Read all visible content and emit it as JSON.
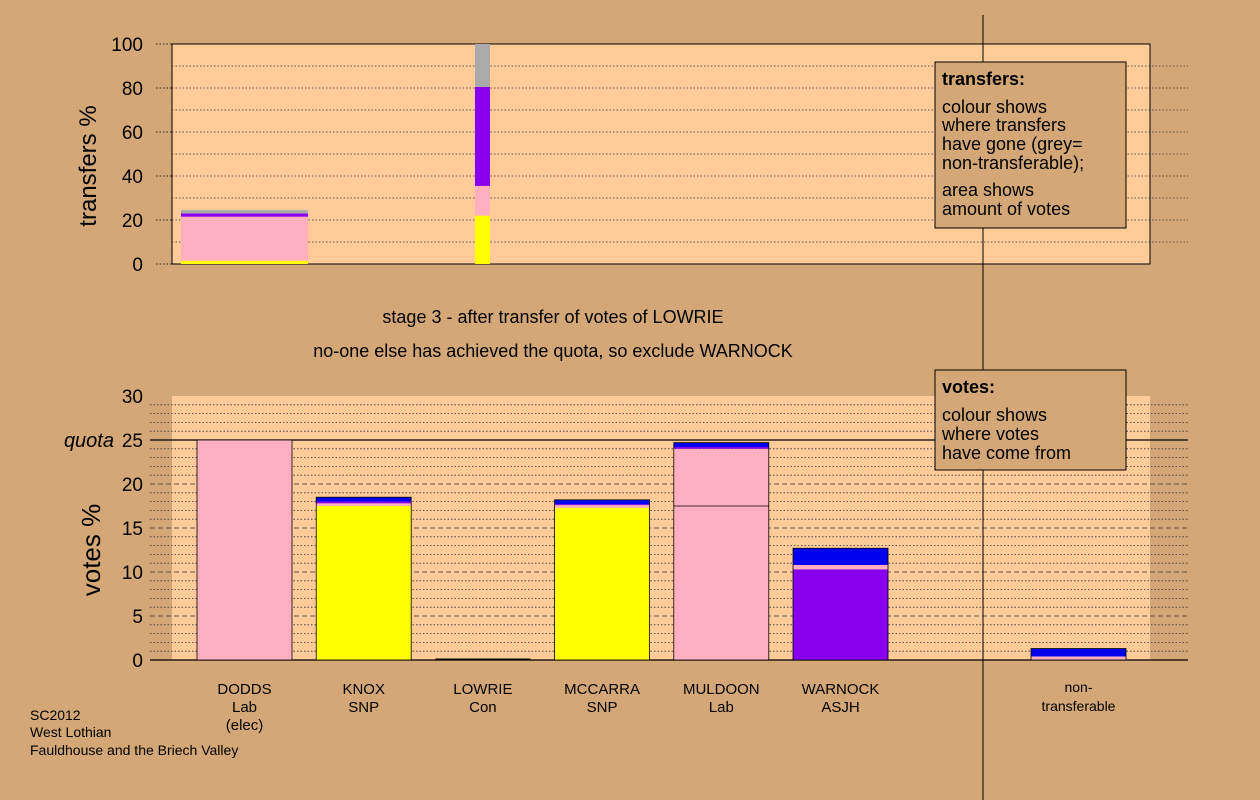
{
  "colors": {
    "background": "#d4a876",
    "plot_area": "#ffcc99",
    "Lab": "#ffb0c0",
    "SNP": "#ffff00",
    "ASJH": "#8800ee",
    "Con": "#0000ee",
    "non_transferable": "#aaaaaa"
  },
  "stage_text": {
    "line1": "stage 3 - after transfer of votes of LOWRIE",
    "line2": "no-one else has achieved the quota, so exclude WARNOCK"
  },
  "transfers_legend": {
    "title": "transfers:",
    "line1": "colour shows",
    "line2": "where transfers",
    "line3": "have gone (grey=",
    "line4": "non-transferable);",
    "line5": "area shows",
    "line6": "amount of votes"
  },
  "votes_legend": {
    "title": "votes:",
    "line1": "colour shows",
    "line2": "where votes",
    "line3": "have come from"
  },
  "footer": {
    "line1": "SC2012",
    "line2": "West Lothian",
    "line3": "Fauldhouse and the Briech Valley"
  },
  "quota_label": "quota",
  "chart_data": [
    {
      "type": "bar",
      "name": "transfers",
      "ylabel": "transfers %",
      "ylim": [
        0,
        100
      ],
      "yticks": [
        0,
        20,
        40,
        60,
        80,
        100
      ],
      "bars": [
        {
          "width_share": 24,
          "segments": [
            {
              "party": "SNP",
              "from": 0,
              "to": 1.5
            },
            {
              "party": "Lab",
              "from": 1.5,
              "to": 21.5
            },
            {
              "party": "ASJH",
              "from": 21.5,
              "to": 23
            },
            {
              "party": "non_transferable",
              "from": 23,
              "to": 24.5
            }
          ]
        },
        {
          "width_share": 1,
          "segments": [
            {
              "party": "SNP",
              "from": 0,
              "to": 22
            },
            {
              "party": "Lab",
              "from": 22,
              "to": 35.5
            },
            {
              "party": "ASJH",
              "from": 35.5,
              "to": 80.5
            },
            {
              "party": "non_transferable",
              "from": 80.5,
              "to": 100
            }
          ]
        }
      ]
    },
    {
      "type": "bar",
      "name": "votes",
      "ylabel": "votes %",
      "ylim": [
        0,
        30
      ],
      "yticks": [
        0,
        5,
        10,
        15,
        20,
        25,
        30
      ],
      "quota": 25,
      "candidates": [
        {
          "name": "DODDS",
          "party": "Lab",
          "note": "(elec)",
          "segments": [
            {
              "party": "Lab",
              "from": 0,
              "to": 25
            }
          ],
          "dividers": []
        },
        {
          "name": "KNOX",
          "party": "SNP",
          "note": "",
          "segments": [
            {
              "party": "SNP",
              "from": 0,
              "to": 17.5
            },
            {
              "party": "Lab",
              "from": 17.5,
              "to": 17.8
            },
            {
              "party": "ASJH",
              "from": 17.8,
              "to": 18
            },
            {
              "party": "Con",
              "from": 18,
              "to": 18.5
            }
          ],
          "dividers": []
        },
        {
          "name": "LOWRIE",
          "party": "Con",
          "note": "",
          "segments": [],
          "dividers": []
        },
        {
          "name": "MCCARRA",
          "party": "SNP",
          "note": "",
          "segments": [
            {
              "party": "SNP",
              "from": 0,
              "to": 17.3
            },
            {
              "party": "Lab",
              "from": 17.3,
              "to": 17.6
            },
            {
              "party": "ASJH",
              "from": 17.6,
              "to": 17.7
            },
            {
              "party": "Con",
              "from": 17.7,
              "to": 18.2
            }
          ],
          "dividers": []
        },
        {
          "name": "MULDOON",
          "party": "Lab",
          "note": "",
          "segments": [
            {
              "party": "Lab",
              "from": 0,
              "to": 24
            },
            {
              "party": "ASJH",
              "from": 24,
              "to": 24.2
            },
            {
              "party": "Con",
              "from": 24.2,
              "to": 24.7
            }
          ],
          "dividers": [
            17.5
          ]
        },
        {
          "name": "WARNOCK",
          "party": "ASJH",
          "note": "",
          "segments": [
            {
              "party": "ASJH",
              "from": 0,
              "to": 10.3
            },
            {
              "party": "Lab",
              "from": 10.3,
              "to": 10.8
            },
            {
              "party": "Con",
              "from": 10.8,
              "to": 12.7
            }
          ],
          "dividers": []
        }
      ],
      "non_transferable": {
        "label_line1": "non-",
        "label_line2": "transferable",
        "segments": [
          {
            "party": "Lab",
            "from": 0,
            "to": 0.4
          },
          {
            "party": "Con",
            "from": 0.4,
            "to": 1.3
          }
        ]
      }
    }
  ]
}
